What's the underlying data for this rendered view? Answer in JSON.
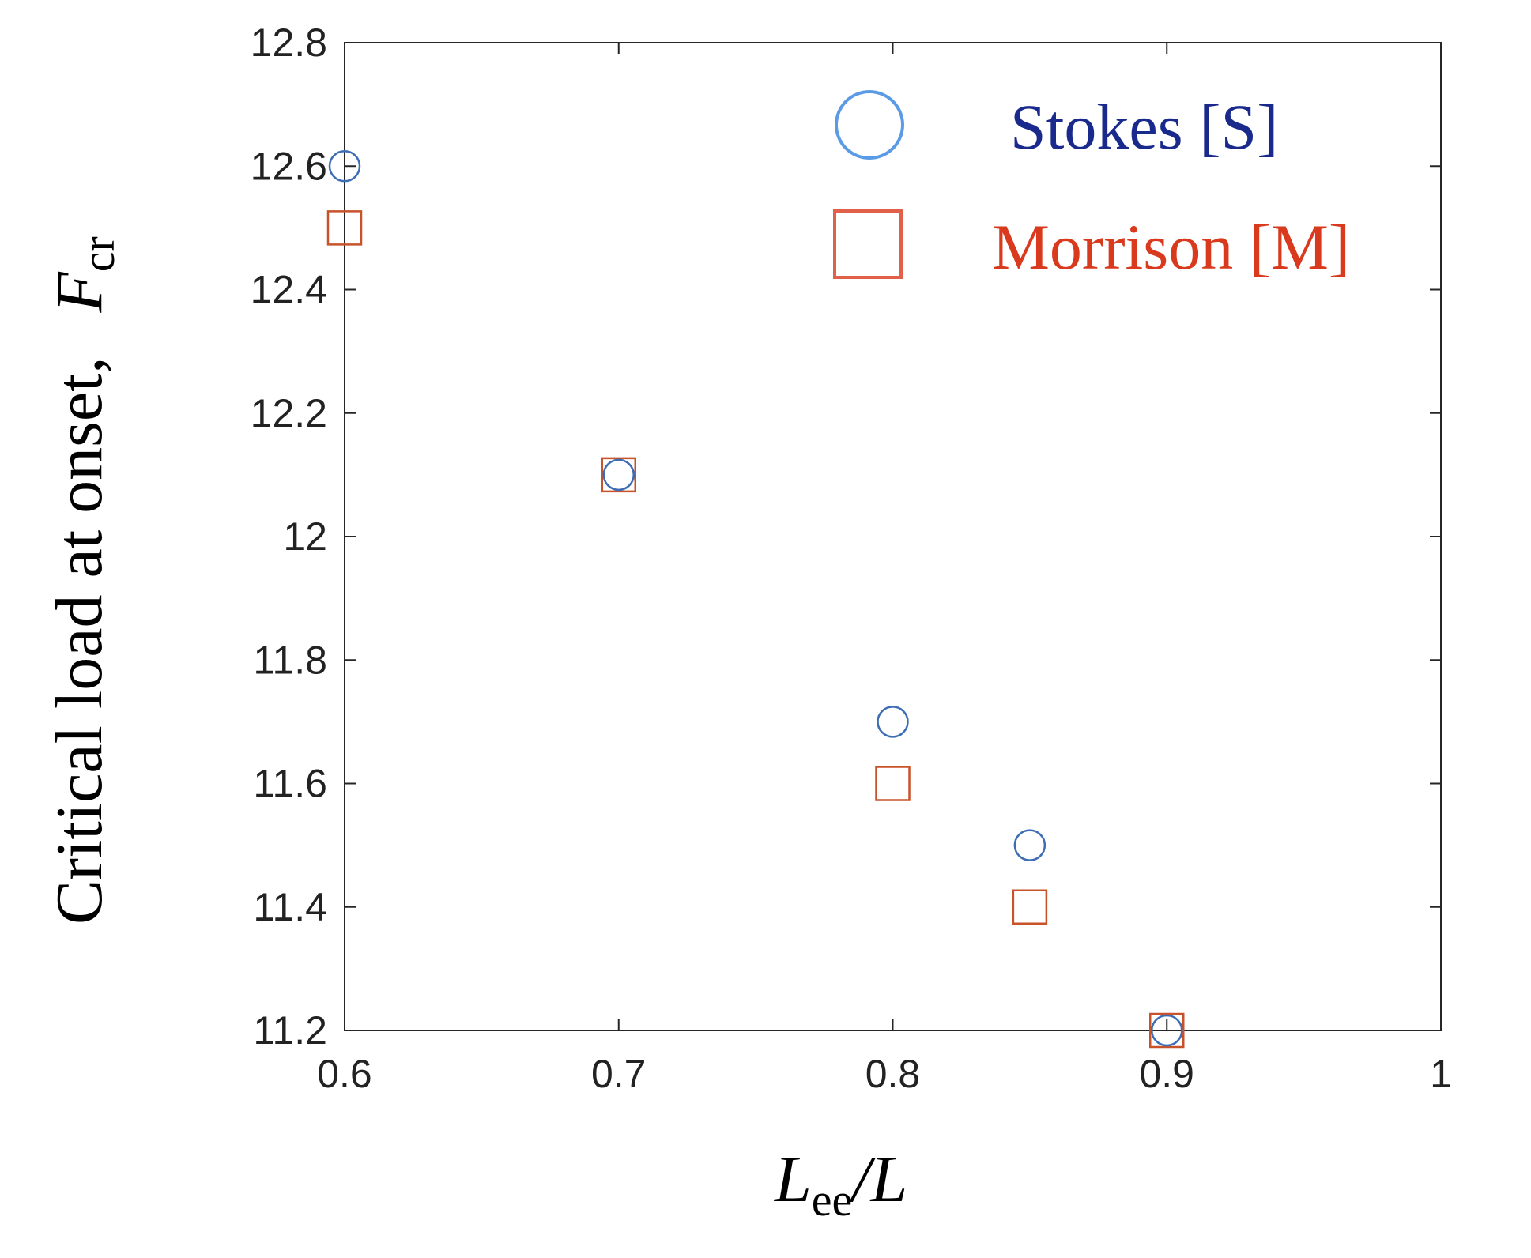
{
  "chart_data": {
    "type": "scatter",
    "xlim": [
      0.6,
      1
    ],
    "ylim": [
      11.2,
      12.8
    ],
    "x_ticks": [
      "0.6",
      "0.7",
      "0.8",
      "0.9",
      "1"
    ],
    "y_ticks": [
      "11.2",
      "11.4",
      "11.6",
      "11.8",
      "12",
      "12.2",
      "12.4",
      "12.6",
      "12.8"
    ],
    "ylabel": {
      "text": "Critical load at onset,",
      "symbol": "F",
      "subscript": "cr"
    },
    "xlabel": {
      "symbol": "L",
      "subscript": "ee",
      "suffix": "/L"
    },
    "legend_placement": "top-right",
    "grid": false,
    "series": [
      {
        "name": "Stokes [S]",
        "marker": "circle",
        "marker_color": "#3d6db5",
        "legend_marker_color": "#5b9be6",
        "text_color": "#1a2a8c",
        "points": [
          [
            0.6,
            12.6
          ],
          [
            0.7,
            12.1
          ],
          [
            0.8,
            11.7
          ],
          [
            0.85,
            11.5
          ],
          [
            0.9,
            11.2
          ]
        ]
      },
      {
        "name": "Morrison [M]",
        "marker": "square",
        "marker_color": "#c8522a",
        "legend_marker_color": "#e0604a",
        "text_color": "#d93a1e",
        "points": [
          [
            0.6,
            12.5
          ],
          [
            0.7,
            12.1
          ],
          [
            0.8,
            11.6
          ],
          [
            0.85,
            11.4
          ],
          [
            0.9,
            11.2
          ]
        ]
      }
    ]
  }
}
